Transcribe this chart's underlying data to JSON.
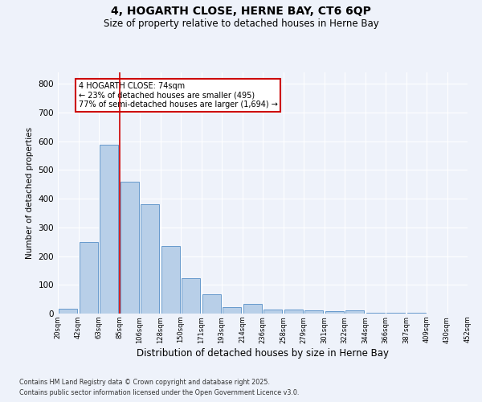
{
  "title_line1": "4, HOGARTH CLOSE, HERNE BAY, CT6 6QP",
  "title_line2": "Size of property relative to detached houses in Herne Bay",
  "xlabel": "Distribution of detached houses by size in Herne Bay",
  "ylabel": "Number of detached properties",
  "categories": [
    "20sqm",
    "42sqm",
    "63sqm",
    "85sqm",
    "106sqm",
    "128sqm",
    "150sqm",
    "171sqm",
    "193sqm",
    "214sqm",
    "236sqm",
    "258sqm",
    "279sqm",
    "301sqm",
    "322sqm",
    "344sqm",
    "366sqm",
    "387sqm",
    "409sqm",
    "430sqm",
    "452sqm"
  ],
  "values": [
    18,
    248,
    588,
    460,
    380,
    236,
    122,
    68,
    22,
    33,
    15,
    13,
    10,
    8,
    10,
    3,
    4,
    2,
    1,
    1
  ],
  "bar_color": "#b8cfe8",
  "bar_edge_color": "#6699cc",
  "red_line_x": 2.5,
  "annotation_text": "4 HOGARTH CLOSE: 74sqm\n← 23% of detached houses are smaller (495)\n77% of semi-detached houses are larger (1,694) →",
  "annotation_box_color": "#ffffff",
  "annotation_box_edge_color": "#cc0000",
  "footnote1": "Contains HM Land Registry data © Crown copyright and database right 2025.",
  "footnote2": "Contains public sector information licensed under the Open Government Licence v3.0.",
  "background_color": "#eef2fa",
  "grid_color": "#ffffff",
  "ylim": [
    0,
    840
  ],
  "yticks": [
    0,
    100,
    200,
    300,
    400,
    500,
    600,
    700,
    800
  ]
}
